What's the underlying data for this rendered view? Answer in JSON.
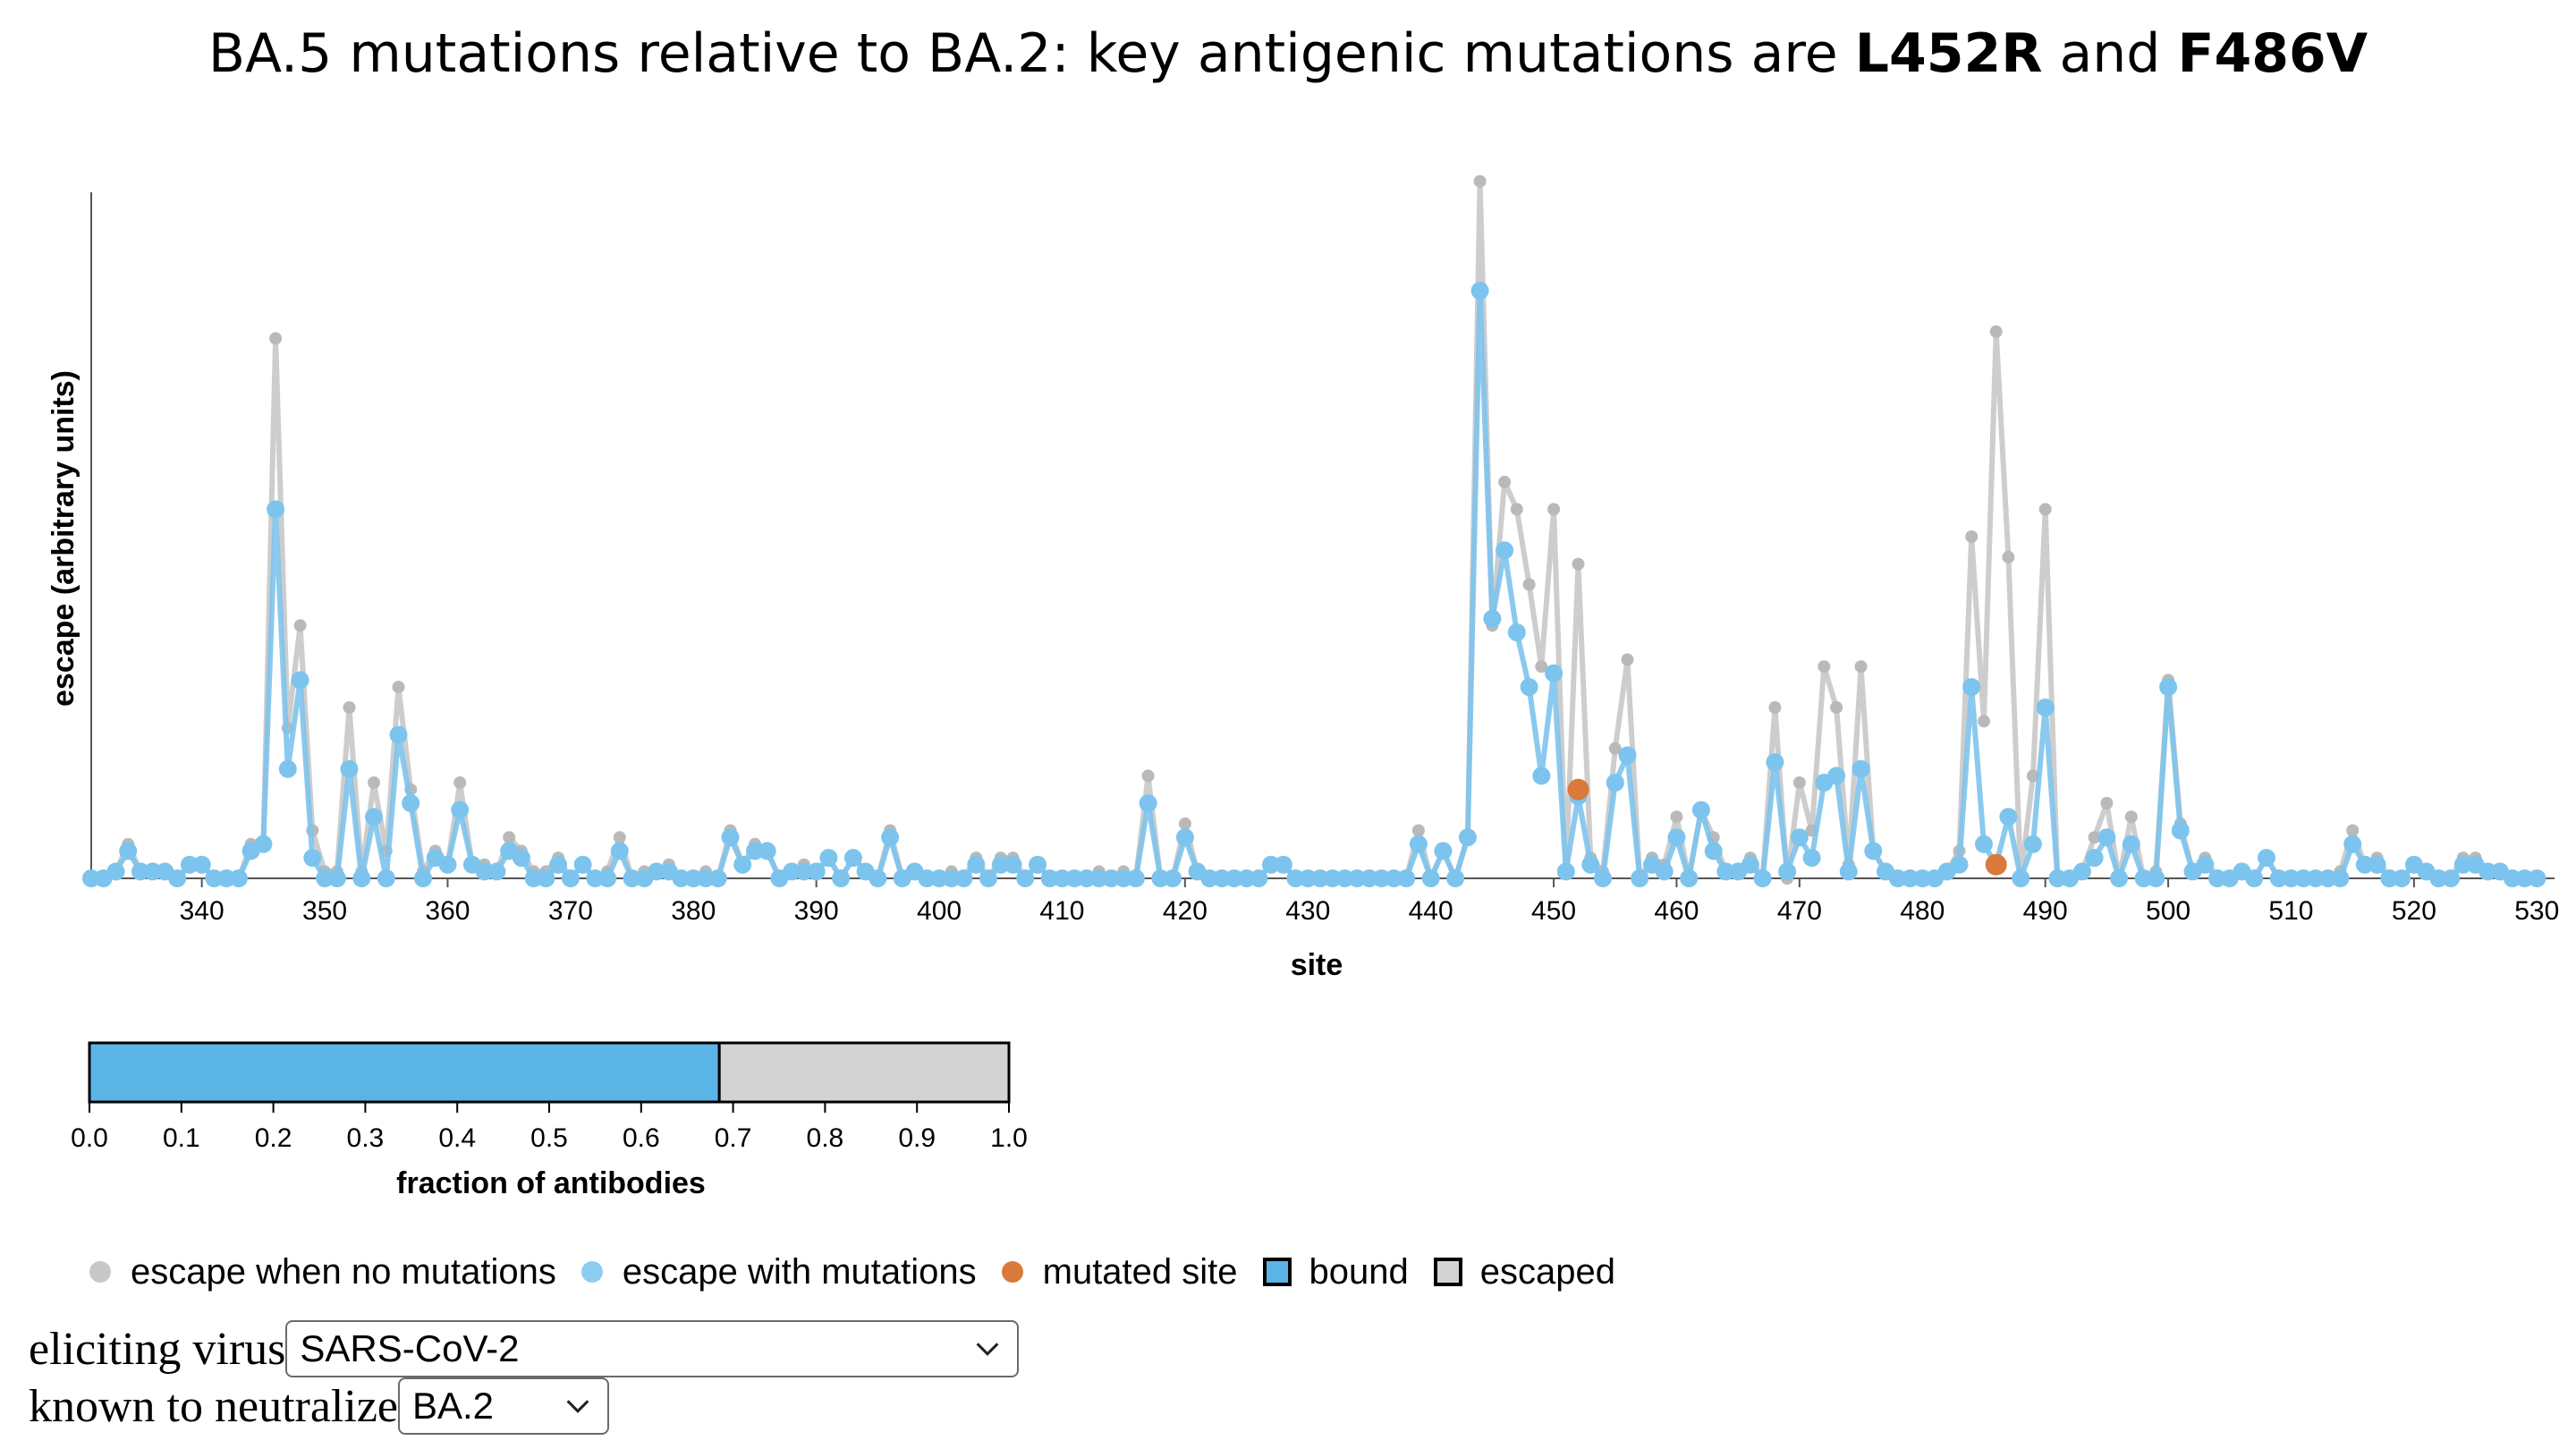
{
  "title": {
    "prefix": "BA.5 mutations relative to BA.2: key antigenic mutations are ",
    "mut1": "L452R",
    "conj": " and ",
    "mut2": "F486V"
  },
  "colors": {
    "no_mutations": "#c8c8c8",
    "with_mutations": "#5ab4e6",
    "mutated_site": "#d97a3a",
    "bound": "#5ab4e6",
    "escaped": "#d3d3d3"
  },
  "chart_data": [
    {
      "type": "line",
      "title": "",
      "xlabel": "site",
      "ylabel": "escape (arbitrary units)",
      "xlim": [
        331,
        531
      ],
      "ylim": [
        0,
        1.0
      ],
      "x_ticks": [
        340,
        350,
        360,
        370,
        380,
        390,
        400,
        410,
        420,
        430,
        440,
        450,
        460,
        470,
        480,
        490,
        500,
        510,
        520,
        530
      ],
      "y_ticks_shown": false,
      "site_start": 331,
      "series": [
        {
          "name": "escape when no mutations",
          "color": "#c8c8c8",
          "values": [
            0.0,
            0.0,
            0.01,
            0.05,
            0.01,
            0.01,
            0.01,
            0.0,
            0.02,
            0.02,
            0.0,
            0.0,
            0.0,
            0.05,
            0.05,
            0.79,
            0.22,
            0.37,
            0.07,
            0.01,
            0.01,
            0.25,
            0.01,
            0.14,
            0.04,
            0.28,
            0.13,
            0.01,
            0.04,
            0.02,
            0.14,
            0.02,
            0.02,
            0.01,
            0.06,
            0.04,
            0.01,
            0.01,
            0.03,
            0.0,
            0.02,
            0.0,
            0.01,
            0.06,
            0.0,
            0.01,
            0.01,
            0.02,
            0.0,
            0.0,
            0.01,
            0.0,
            0.07,
            0.02,
            0.05,
            0.04,
            0.0,
            0.01,
            0.02,
            0.01,
            0.03,
            0.0,
            0.03,
            0.01,
            0.0,
            0.07,
            0.0,
            0.01,
            0.0,
            0.0,
            0.01,
            0.0,
            0.03,
            0.0,
            0.03,
            0.03,
            0.0,
            0.02,
            0.0,
            0.0,
            0.0,
            0.0,
            0.01,
            0.0,
            0.01,
            0.0,
            0.15,
            0.0,
            0.0,
            0.08,
            0.01,
            0.0,
            0.0,
            0.0,
            0.0,
            0.0,
            0.02,
            0.02,
            0.0,
            0.0,
            0.0,
            0.0,
            0.0,
            0.0,
            0.0,
            0.0,
            0.0,
            0.0,
            0.07,
            0.0,
            0.04,
            0.0,
            0.06,
            1.02,
            0.37,
            0.58,
            0.54,
            0.43,
            0.31,
            0.54,
            0.01,
            0.46,
            0.03,
            0.01,
            0.19,
            0.32,
            0.0,
            0.03,
            0.02,
            0.09,
            0.0,
            0.1,
            0.06,
            0.01,
            0.01,
            0.03,
            0.0,
            0.25,
            0.0,
            0.14,
            0.07,
            0.31,
            0.25,
            0.02,
            0.31,
            0.04,
            0.01,
            0.0,
            0.0,
            0.0,
            0.0,
            0.01,
            0.04,
            0.5,
            0.23,
            0.8,
            0.47,
            0.0,
            0.15,
            0.54,
            0.0,
            0.0,
            0.01,
            0.06,
            0.11,
            0.0,
            0.09,
            0.0,
            0.01,
            0.29,
            0.08,
            0.01,
            0.03,
            0.0,
            0.0,
            0.01,
            0.0,
            0.03,
            0.0,
            0.0,
            0.0,
            0.0,
            0.0,
            0.01,
            0.07,
            0.02,
            0.03,
            0.0,
            0.0,
            0.02,
            0.01,
            0.0,
            0.0,
            0.03,
            0.03,
            0.01,
            0.01,
            0.0,
            0.0,
            0.0
          ]
        },
        {
          "name": "escape with mutations",
          "color": "#5ab4e6",
          "values": [
            0.0,
            0.0,
            0.01,
            0.04,
            0.01,
            0.01,
            0.01,
            0.0,
            0.02,
            0.02,
            0.0,
            0.0,
            0.0,
            0.04,
            0.05,
            0.54,
            0.16,
            0.29,
            0.03,
            0.0,
            0.0,
            0.16,
            0.0,
            0.09,
            0.0,
            0.21,
            0.11,
            0.0,
            0.03,
            0.02,
            0.1,
            0.02,
            0.01,
            0.01,
            0.04,
            0.03,
            0.0,
            0.0,
            0.02,
            0.0,
            0.02,
            0.0,
            0.0,
            0.04,
            0.0,
            0.0,
            0.01,
            0.01,
            0.0,
            0.0,
            0.0,
            0.0,
            0.06,
            0.02,
            0.04,
            0.04,
            0.0,
            0.01,
            0.01,
            0.01,
            0.03,
            0.0,
            0.03,
            0.01,
            0.0,
            0.06,
            0.0,
            0.01,
            0.0,
            0.0,
            0.0,
            0.0,
            0.02,
            0.0,
            0.02,
            0.02,
            0.0,
            0.02,
            0.0,
            0.0,
            0.0,
            0.0,
            0.0,
            0.0,
            0.0,
            0.0,
            0.11,
            0.0,
            0.0,
            0.06,
            0.01,
            0.0,
            0.0,
            0.0,
            0.0,
            0.0,
            0.02,
            0.02,
            0.0,
            0.0,
            0.0,
            0.0,
            0.0,
            0.0,
            0.0,
            0.0,
            0.0,
            0.0,
            0.05,
            0.0,
            0.04,
            0.0,
            0.06,
            0.86,
            0.38,
            0.48,
            0.36,
            0.28,
            0.15,
            0.3,
            0.01,
            0.12,
            0.02,
            0.0,
            0.14,
            0.18,
            0.0,
            0.02,
            0.01,
            0.06,
            0.0,
            0.1,
            0.04,
            0.01,
            0.01,
            0.02,
            0.0,
            0.17,
            0.01,
            0.06,
            0.03,
            0.14,
            0.15,
            0.01,
            0.16,
            0.04,
            0.01,
            0.0,
            0.0,
            0.0,
            0.0,
            0.01,
            0.02,
            0.28,
            0.05,
            0.02,
            0.09,
            0.0,
            0.05,
            0.25,
            0.0,
            0.0,
            0.01,
            0.03,
            0.06,
            0.0,
            0.05,
            0.0,
            0.0,
            0.28,
            0.07,
            0.01,
            0.02,
            0.0,
            0.0,
            0.01,
            0.0,
            0.03,
            0.0,
            0.0,
            0.0,
            0.0,
            0.0,
            0.0,
            0.05,
            0.02,
            0.02,
            0.0,
            0.0,
            0.02,
            0.01,
            0.0,
            0.0,
            0.02,
            0.02,
            0.01,
            0.01,
            0.0,
            0.0,
            0.0
          ]
        }
      ],
      "mutated_sites": [
        {
          "site": 452,
          "value": 0.13
        },
        {
          "site": 486,
          "value": 0.02
        }
      ]
    },
    {
      "type": "bar",
      "orientation": "horizontal-stacked",
      "title": "",
      "xlabel": "fraction of antibodies",
      "xlim": [
        0.0,
        1.0
      ],
      "x_ticks": [
        "0.0",
        "0.1",
        "0.2",
        "0.3",
        "0.4",
        "0.5",
        "0.6",
        "0.7",
        "0.8",
        "0.9",
        "1.0"
      ],
      "series": [
        {
          "name": "bound",
          "value": 0.685,
          "color": "#5ab4e6"
        },
        {
          "name": "escaped",
          "value": 0.315,
          "color": "#d3d3d3"
        }
      ]
    }
  ],
  "legend": {
    "items": [
      {
        "label": "escape when no mutations",
        "color": "#c8c8c8",
        "shape": "circle"
      },
      {
        "label": "escape with mutations",
        "color": "#5ab4e6",
        "shape": "circle"
      },
      {
        "label": "mutated site",
        "color": "#d97a3a",
        "shape": "circle"
      },
      {
        "label": "bound",
        "color": "#5ab4e6",
        "shape": "square"
      },
      {
        "label": "escaped",
        "color": "#d3d3d3",
        "shape": "square"
      }
    ]
  },
  "controls": {
    "eliciting_virus": {
      "label": "eliciting virus",
      "value": "SARS-CoV-2"
    },
    "known_to_neutralize": {
      "label": "known to neutralize",
      "value": "BA.2"
    }
  }
}
